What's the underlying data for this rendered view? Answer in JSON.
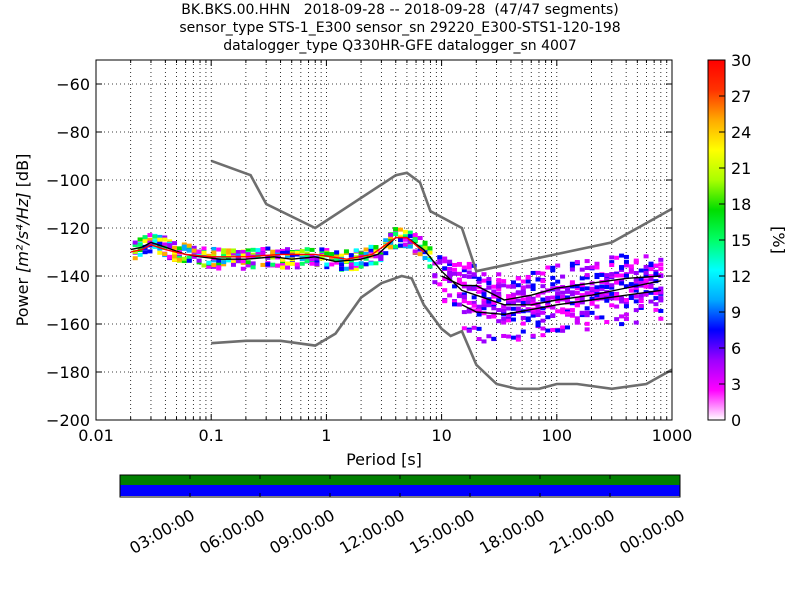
{
  "title_lines": [
    "BK.BKS.00.HHN   2018-09-28 -- 2018-09-28  (47/47 segments)",
    "sensor_type STS-1_E300 sensor_sn 29220_E300-STS1-120-198",
    "datalogger_type Q330HR-GFE datalogger_sn 4007"
  ],
  "xlabel": "Period [s]",
  "ylabel_parts": {
    "prefix": "Power ",
    "unit": "[m²/s⁴/Hz]",
    "suffix": " [dB]"
  },
  "colorbar_label": "[%]",
  "chart_data": [
    {
      "type": "heatmap",
      "title": "",
      "xlabel": "Period [s]",
      "ylabel": "Power [m^2/s^4/Hz] [dB]",
      "xscale": "log",
      "xlim": [
        0.01,
        1000
      ],
      "ylim": [
        -200,
        -50
      ],
      "x_ticks": [
        0.01,
        0.1,
        1,
        10,
        100,
        1000
      ],
      "x_tick_labels": [
        "0.01",
        "0.1",
        "1",
        "10",
        "100",
        "1000"
      ],
      "y_ticks": [
        -200,
        -180,
        -160,
        -140,
        -120,
        -100,
        -80,
        -60
      ],
      "y_tick_labels": [
        "−200",
        "−180",
        "−160",
        "−140",
        "−120",
        "−100",
        "−80",
        "−60"
      ],
      "grid": true,
      "colorbar": {
        "label": "[%]",
        "range": [
          0,
          30
        ],
        "ticks": [
          "0",
          "3",
          "6",
          "9",
          "12",
          "15",
          "18",
          "21",
          "24",
          "27",
          "30"
        ],
        "colors": [
          "#ffffff",
          "#ff00ff",
          "#9c00ff",
          "#0000ff",
          "#00aaff",
          "#00ffff",
          "#00ff66",
          "#00dd00",
          "#aaff00",
          "#ffff00",
          "#ffaa00",
          "#ff3300",
          "#ff0000"
        ]
      },
      "series": [
        {
          "name": "",
          "color": "#6e6e6e",
          "x": [
            0.1,
            0.22,
            0.3,
            0.8,
            4.0,
            5.0,
            6.5,
            8.0,
            15.0,
            20.0,
            300.0,
            1000.0
          ],
          "y": [
            -92,
            -98,
            -110,
            -120,
            -98,
            -97,
            -101,
            -113,
            -120,
            -138,
            -126,
            -112
          ]
        },
        {
          "name": "",
          "color": "#6e6e6e",
          "x": [
            0.1,
            0.2,
            0.4,
            0.8,
            1.2,
            2.0,
            3.0,
            4.5,
            5.5,
            7.0,
            10.0,
            12.0,
            15.0,
            20.0,
            30.0,
            45.0,
            70.0,
            100.0,
            150.0,
            300.0,
            600.0,
            1000.0
          ],
          "y": [
            -168,
            -167,
            -167,
            -169,
            -164,
            -149,
            -143,
            -140,
            -141,
            -152,
            -162,
            -165,
            -163,
            -177,
            -185,
            -187,
            -187,
            -185,
            -185,
            -187,
            -185,
            -179
          ]
        },
        {
          "name": "",
          "color": "#000000",
          "x": [
            0.02,
            0.025,
            0.03,
            0.04,
            0.06,
            0.08,
            0.12,
            0.2,
            0.35,
            0.5,
            0.8,
            1.2,
            2.0,
            2.8,
            4.0,
            5.0,
            7.0,
            10.0,
            15.0,
            20.0,
            35.0,
            60.0,
            100.0,
            200.0,
            400.0,
            800.0
          ],
          "y": [
            -129,
            -128,
            -126,
            -128,
            -131,
            -132,
            -133,
            -133,
            -132,
            -133,
            -132,
            -134,
            -133,
            -131,
            -124,
            -124,
            -129,
            -138,
            -146,
            -148,
            -152,
            -152,
            -150,
            -148,
            -145,
            -142
          ]
        },
        {
          "name": "",
          "color": "#000000",
          "x": [
            10.0,
            15.0,
            20.0,
            35.0,
            60.0,
            100.0,
            200.0,
            400.0,
            800.0
          ],
          "y": [
            -140,
            -144,
            -144,
            -150,
            -148,
            -145,
            -143,
            -141,
            -140
          ]
        },
        {
          "name": "",
          "color": "#000000",
          "x": [
            15.0,
            20.0,
            35.0,
            60.0,
            100.0,
            200.0,
            400.0,
            800.0
          ],
          "y": [
            -152,
            -155,
            -156,
            -154,
            -152,
            -150,
            -148,
            -146
          ]
        },
        {
          "name": "",
          "color": "#ff0000",
          "x": [
            0.02,
            0.025,
            0.03,
            0.04,
            0.06,
            0.1,
            0.2,
            0.4,
            0.8,
            1.5,
            2.5,
            4.0,
            5.0,
            7.0
          ],
          "y": [
            -130,
            -129,
            -127,
            -129,
            -131,
            -132,
            -132,
            -131,
            -131,
            -133,
            -131,
            -124,
            -124,
            -130
          ]
        }
      ]
    },
    {
      "type": "timeline",
      "x_tick_labels": [
        "03:00:00",
        "06:00:00",
        "09:00:00",
        "12:00:00",
        "15:00:00",
        "18:00:00",
        "21:00:00",
        "00:00:00"
      ],
      "series": [
        {
          "name": "",
          "color": "#007f00",
          "coverage": 1.0
        },
        {
          "name": "",
          "color": "#0000ff",
          "coverage": 1.0
        }
      ]
    }
  ]
}
